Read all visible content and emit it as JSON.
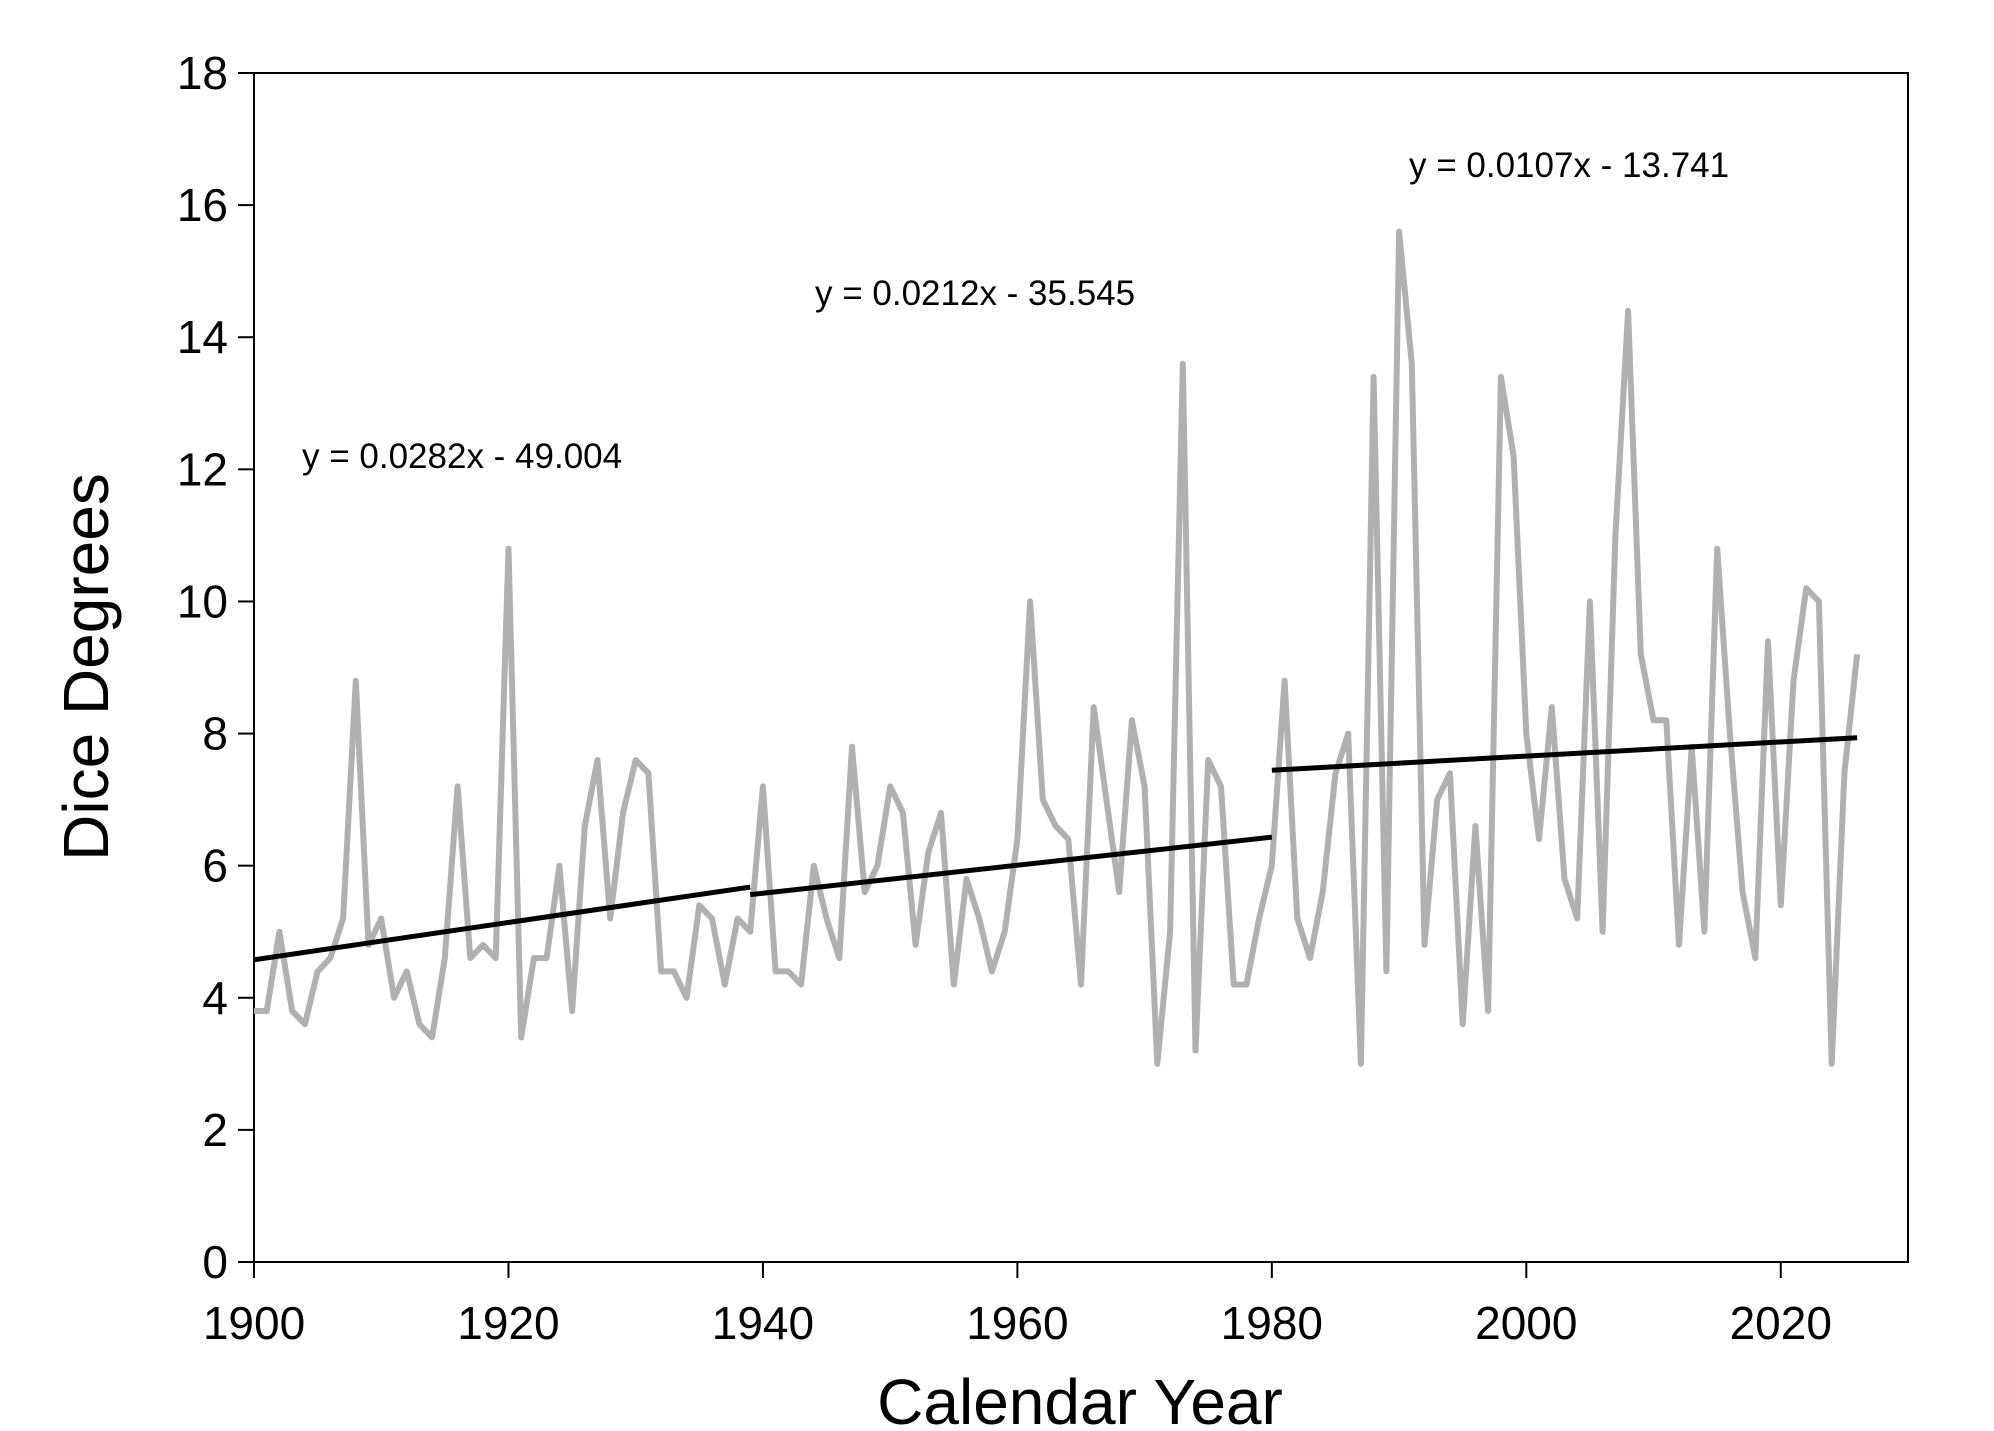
{
  "chart_data": {
    "type": "line",
    "title": "",
    "xlabel": "Calendar Year",
    "ylabel": "Dice Degrees",
    "xlim": [
      1900,
      2030
    ],
    "ylim": [
      0,
      18
    ],
    "x_ticks": [
      "1900",
      "1920",
      "1940",
      "1960",
      "1980",
      "2000",
      "2020"
    ],
    "y_ticks": [
      "0",
      "2",
      "4",
      "6",
      "8",
      "10",
      "12",
      "14",
      "16",
      "18"
    ],
    "grid": false,
    "legend": "none",
    "colors": {
      "series": "#b0b0b0",
      "trend": "#000000",
      "axis": "#000000"
    },
    "series": [
      {
        "name": "Dice Degrees",
        "x": [
          1900,
          1901,
          1902,
          1903,
          1904,
          1905,
          1906,
          1907,
          1908,
          1909,
          1910,
          1911,
          1912,
          1913,
          1914,
          1915,
          1916,
          1917,
          1918,
          1919,
          1920,
          1921,
          1922,
          1923,
          1924,
          1925,
          1926,
          1927,
          1928,
          1929,
          1930,
          1931,
          1932,
          1933,
          1934,
          1935,
          1936,
          1937,
          1938,
          1939,
          1940,
          1941,
          1942,
          1943,
          1944,
          1945,
          1946,
          1947,
          1948,
          1949,
          1950,
          1951,
          1952,
          1953,
          1954,
          1955,
          1956,
          1957,
          1958,
          1959,
          1960,
          1961,
          1962,
          1963,
          1964,
          1965,
          1966,
          1967,
          1968,
          1969,
          1970,
          1971,
          1972,
          1973,
          1974,
          1975,
          1976,
          1977,
          1978,
          1979,
          1980,
          1981,
          1982,
          1983,
          1984,
          1985,
          1986,
          1987,
          1988,
          1989,
          1990,
          1991,
          1992,
          1993,
          1994,
          1995,
          1996,
          1997,
          1998,
          1999,
          2000,
          2001,
          2002,
          2003,
          2004,
          2005,
          2006,
          2007,
          2008,
          2009,
          2010,
          2011,
          2012,
          2013,
          2014,
          2015,
          2016,
          2017,
          2018,
          2019,
          2020,
          2021,
          2022,
          2023,
          2024,
          2025,
          2026
        ],
        "values": [
          3.8,
          3.8,
          5.0,
          3.8,
          3.6,
          4.4,
          4.6,
          5.2,
          8.8,
          4.8,
          5.2,
          4.0,
          4.4,
          3.6,
          3.4,
          4.6,
          7.2,
          4.6,
          4.8,
          4.6,
          10.8,
          3.4,
          4.6,
          4.6,
          6.0,
          3.8,
          6.6,
          7.6,
          5.2,
          6.8,
          7.6,
          7.4,
          4.4,
          4.4,
          4.0,
          5.4,
          5.2,
          4.2,
          5.2,
          5.0,
          7.2,
          4.4,
          4.4,
          4.2,
          6.0,
          5.2,
          4.6,
          7.8,
          5.6,
          6.0,
          7.2,
          6.8,
          4.8,
          6.2,
          6.8,
          4.2,
          5.8,
          5.2,
          4.4,
          5.0,
          6.4,
          10.0,
          7.0,
          6.6,
          6.4,
          4.2,
          8.4,
          7.0,
          5.6,
          8.2,
          7.2,
          3.0,
          5.0,
          13.6,
          3.2,
          7.6,
          7.2,
          4.2,
          4.2,
          5.2,
          6.0,
          8.8,
          5.2,
          4.6,
          5.6,
          7.4,
          8.0,
          3.0,
          13.4,
          4.4,
          15.6,
          13.6,
          4.8,
          7.0,
          7.4,
          3.6,
          6.6,
          3.8,
          13.4,
          12.2,
          8.0,
          6.4,
          8.4,
          5.8,
          5.2,
          10.0,
          5.0,
          11.0,
          14.4,
          9.2,
          8.2,
          8.2,
          4.8,
          7.8,
          5.0,
          10.8,
          8.0,
          5.6,
          4.6,
          9.4,
          5.4,
          8.8,
          10.2,
          10.0,
          3.0,
          7.4,
          9.2
        ]
      }
    ],
    "trendlines": [
      {
        "label": "y = 0.0282x - 49.004",
        "slope": 0.0282,
        "intercept": -49.004,
        "x_range": [
          1900,
          1939
        ]
      },
      {
        "label": "y = 0.0212x - 35.545",
        "slope": 0.0212,
        "intercept": -35.545,
        "x_range": [
          1939,
          1980
        ]
      },
      {
        "label": "y = 0.0107x - 13.741",
        "slope": 0.0107,
        "intercept": -13.741,
        "x_range": [
          1980,
          2026
        ]
      }
    ]
  }
}
